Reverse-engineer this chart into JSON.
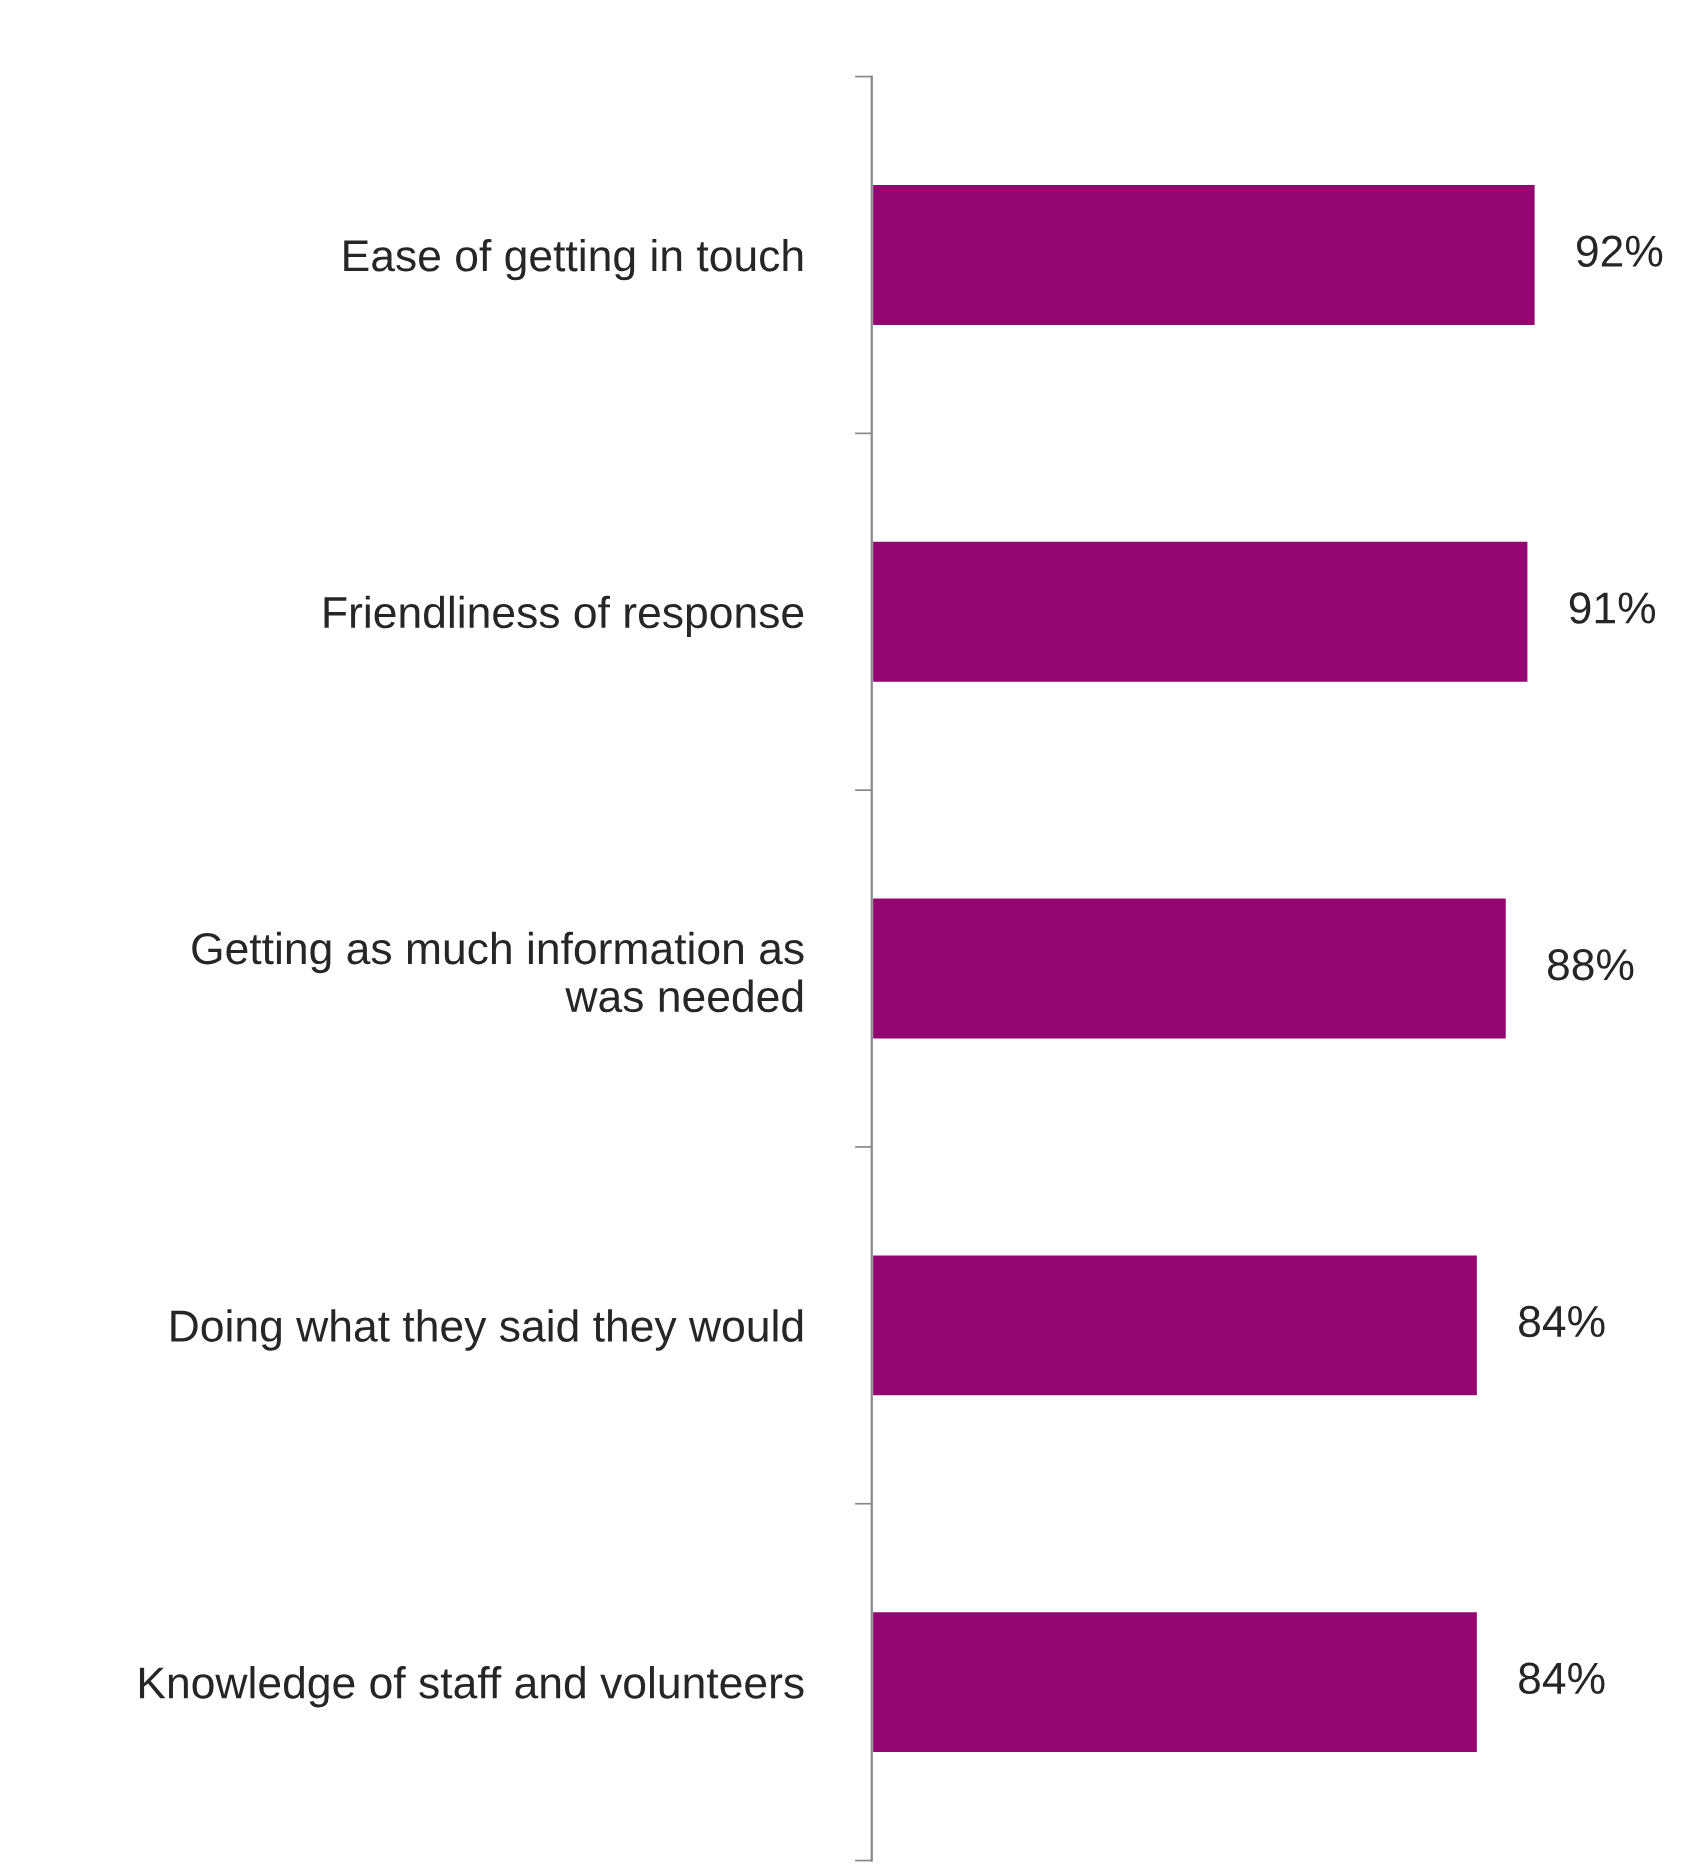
{
  "chart_data": {
    "type": "bar",
    "orientation": "horizontal",
    "categories": [
      "Ease of getting in touch",
      "Friendliness of response",
      "Getting as much information as\nwas needed",
      "Doing what they said they would",
      "Knowledge of staff and volunteers"
    ],
    "values": [
      92,
      91,
      88,
      84,
      84
    ],
    "value_labels": [
      "92%",
      "91%",
      "88%",
      "84%",
      "84%"
    ],
    "color": "#93066f",
    "grid": false,
    "legend": false
  }
}
